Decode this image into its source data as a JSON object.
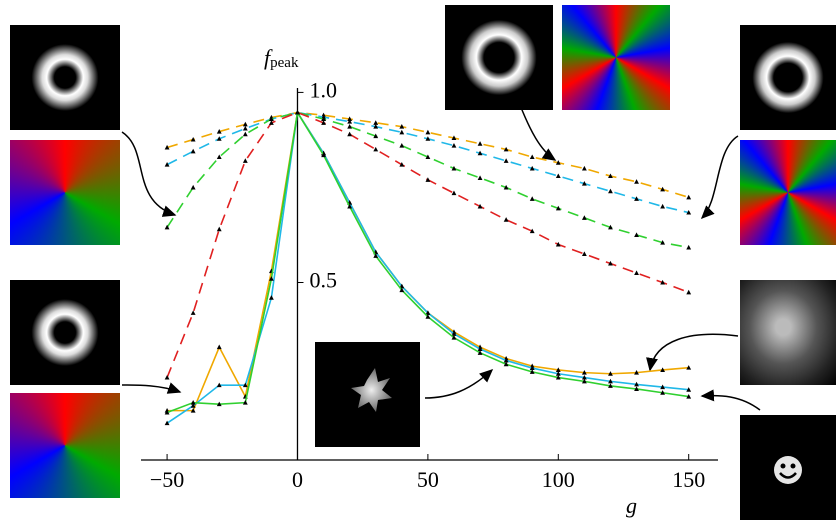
{
  "chart_data": {
    "type": "line",
    "y_label": "f",
    "y_label_sub": "peak",
    "x_label": "g",
    "xlim": [
      -60,
      162
    ],
    "ylim": [
      0.05,
      1.03
    ],
    "xticks": [
      {
        "value": -50,
        "label": "−50"
      },
      0,
      50,
      100,
      150
    ],
    "yticks": [
      0.5,
      {
        "value": 1.0,
        "label": "1.0"
      }
    ],
    "x": [
      -50,
      -40,
      -30,
      -20,
      -10,
      0,
      10,
      20,
      30,
      40,
      50,
      60,
      70,
      80,
      90,
      100,
      110,
      120,
      130,
      140,
      150
    ],
    "series": [
      {
        "color": "#f0a800",
        "dashed": true,
        "values": [
          0.855,
          0.876,
          0.897,
          0.916,
          0.934,
          0.947,
          0.94,
          0.93,
          0.92,
          0.91,
          0.895,
          0.88,
          0.865,
          0.85,
          0.83,
          0.815,
          0.8,
          0.78,
          0.765,
          0.745,
          0.724
        ]
      },
      {
        "color": "#20b8e8",
        "dashed": true,
        "values": [
          0.81,
          0.845,
          0.878,
          0.905,
          0.93,
          0.947,
          0.935,
          0.923,
          0.91,
          0.895,
          0.878,
          0.86,
          0.84,
          0.82,
          0.8,
          0.78,
          0.76,
          0.74,
          0.72,
          0.7,
          0.684
        ]
      },
      {
        "color": "#30d030",
        "dashed": true,
        "values": [
          0.645,
          0.75,
          0.83,
          0.89,
          0.93,
          0.947,
          0.93,
          0.91,
          0.885,
          0.86,
          0.83,
          0.8,
          0.775,
          0.75,
          0.72,
          0.695,
          0.67,
          0.645,
          0.625,
          0.605,
          0.592
        ]
      },
      {
        "color": "#e02020",
        "dashed": true,
        "values": [
          0.25,
          0.42,
          0.64,
          0.82,
          0.92,
          0.947,
          0.92,
          0.89,
          0.85,
          0.81,
          0.77,
          0.735,
          0.7,
          0.665,
          0.635,
          0.6,
          0.575,
          0.55,
          0.525,
          0.5,
          0.474
        ]
      },
      {
        "color": "#f0a800",
        "dashed": false,
        "values": [
          0.163,
          0.163,
          0.33,
          0.2,
          0.53,
          0.947,
          0.84,
          0.71,
          0.58,
          0.49,
          0.42,
          0.37,
          0.33,
          0.3,
          0.28,
          0.27,
          0.263,
          0.26,
          0.263,
          0.27,
          0.276
        ]
      },
      {
        "color": "#20b8e8",
        "dashed": false,
        "values": [
          0.13,
          0.176,
          0.23,
          0.23,
          0.46,
          0.947,
          0.84,
          0.71,
          0.58,
          0.49,
          0.42,
          0.365,
          0.325,
          0.295,
          0.275,
          0.26,
          0.25,
          0.24,
          0.232,
          0.225,
          0.218
        ]
      },
      {
        "color": "#30d030",
        "dashed": false,
        "values": [
          0.158,
          0.184,
          0.18,
          0.184,
          0.51,
          0.947,
          0.835,
          0.7,
          0.57,
          0.48,
          0.41,
          0.355,
          0.315,
          0.285,
          0.265,
          0.25,
          0.24,
          0.228,
          0.22,
          0.21,
          0.2
        ]
      }
    ]
  }
}
